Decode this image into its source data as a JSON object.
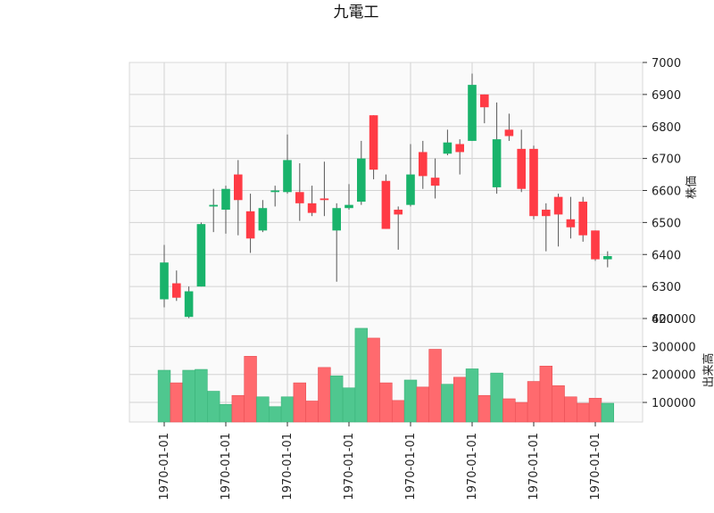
{
  "chart_data": {
    "type": "candlestick",
    "title": "九電工",
    "price_axis": {
      "label": "株価",
      "ylim": [
        6200,
        7000
      ],
      "ticks": [
        6200,
        6300,
        6400,
        6500,
        6600,
        6700,
        6800,
        6900,
        7000
      ]
    },
    "volume_axis": {
      "label": "出来高",
      "ylim": [
        30000,
        400000
      ],
      "ticks": [
        100000,
        200000,
        300000,
        400000
      ]
    },
    "x_tick_labels": [
      "1970-01-01",
      "1970-01-01",
      "1970-01-01",
      "1970-01-01",
      "1970-01-01",
      "1970-01-01",
      "1970-01-01",
      "1970-01-01"
    ],
    "x_tick_index": [
      0,
      5,
      10,
      15,
      20,
      25,
      30,
      35
    ],
    "grid": true,
    "colors": {
      "up": "#19b36b",
      "down": "#ff3b45",
      "up_volume": "#4fc78f",
      "down_volume": "#ff6a6e",
      "wick": "#555555",
      "grid": "#d3d3d3",
      "plot_bg": "#fafafa"
    },
    "candles": [
      {
        "open": 6260,
        "high": 6430,
        "low": 6235,
        "close": 6375,
        "volume": 215000
      },
      {
        "open": 6310,
        "high": 6350,
        "low": 6255,
        "close": 6265,
        "volume": 170000
      },
      {
        "open": 6205,
        "high": 6300,
        "low": 6195,
        "close": 6285,
        "volume": 215000
      },
      {
        "open": 6300,
        "high": 6500,
        "low": 6300,
        "close": 6495,
        "volume": 218000
      },
      {
        "open": 6550,
        "high": 6605,
        "low": 6470,
        "close": 6555,
        "volume": 140000
      },
      {
        "open": 6540,
        "high": 6615,
        "low": 6465,
        "close": 6605,
        "volume": 93000
      },
      {
        "open": 6650,
        "high": 6695,
        "low": 6460,
        "close": 6570,
        "volume": 125000
      },
      {
        "open": 6535,
        "high": 6590,
        "low": 6405,
        "close": 6450,
        "volume": 265000
      },
      {
        "open": 6475,
        "high": 6570,
        "low": 6470,
        "close": 6545,
        "volume": 120000
      },
      {
        "open": 6595,
        "high": 6615,
        "low": 6550,
        "close": 6600,
        "volume": 85000
      },
      {
        "open": 6595,
        "high": 6775,
        "low": 6590,
        "close": 6695,
        "volume": 120000
      },
      {
        "open": 6595,
        "high": 6685,
        "low": 6505,
        "close": 6560,
        "volume": 170000
      },
      {
        "open": 6560,
        "high": 6615,
        "low": 6520,
        "close": 6530,
        "volume": 105000
      },
      {
        "open": 6575,
        "high": 6690,
        "low": 6520,
        "close": 6570,
        "volume": 225000
      },
      {
        "open": 6475,
        "high": 6560,
        "low": 6315,
        "close": 6545,
        "volume": 195000
      },
      {
        "open": 6545,
        "high": 6620,
        "low": 6540,
        "close": 6555,
        "volume": 152000
      },
      {
        "open": 6565,
        "high": 6755,
        "low": 6555,
        "close": 6700,
        "volume": 365000
      },
      {
        "open": 6835,
        "high": 6835,
        "low": 6635,
        "close": 6665,
        "volume": 330000
      },
      {
        "open": 6630,
        "high": 6650,
        "low": 6480,
        "close": 6480,
        "volume": 170000
      },
      {
        "open": 6540,
        "high": 6550,
        "low": 6415,
        "close": 6525,
        "volume": 107000
      },
      {
        "open": 6555,
        "high": 6745,
        "low": 6550,
        "close": 6650,
        "volume": 180000
      },
      {
        "open": 6720,
        "high": 6755,
        "low": 6605,
        "close": 6645,
        "volume": 155000
      },
      {
        "open": 6640,
        "high": 6700,
        "low": 6575,
        "close": 6615,
        "volume": 290000
      },
      {
        "open": 6715,
        "high": 6790,
        "low": 6710,
        "close": 6750,
        "volume": 165000
      },
      {
        "open": 6745,
        "high": 6760,
        "low": 6650,
        "close": 6720,
        "volume": 190000
      },
      {
        "open": 6755,
        "high": 6965,
        "low": 6755,
        "close": 6930,
        "volume": 220000
      },
      {
        "open": 6900,
        "high": 6900,
        "low": 6810,
        "close": 6860,
        "volume": 125000
      },
      {
        "open": 6610,
        "high": 6875,
        "low": 6590,
        "close": 6760,
        "volume": 205000
      },
      {
        "open": 6790,
        "high": 6840,
        "low": 6755,
        "close": 6770,
        "volume": 113000
      },
      {
        "open": 6730,
        "high": 6790,
        "low": 6595,
        "close": 6605,
        "volume": 100000
      },
      {
        "open": 6730,
        "high": 6740,
        "low": 6510,
        "close": 6520,
        "volume": 175000
      },
      {
        "open": 6540,
        "high": 6560,
        "low": 6410,
        "close": 6520,
        "volume": 230000
      },
      {
        "open": 6580,
        "high": 6590,
        "low": 6425,
        "close": 6525,
        "volume": 160000
      },
      {
        "open": 6510,
        "high": 6580,
        "low": 6450,
        "close": 6485,
        "volume": 120000
      },
      {
        "open": 6565,
        "high": 6580,
        "low": 6440,
        "close": 6460,
        "volume": 97000
      },
      {
        "open": 6475,
        "high": 6475,
        "low": 6380,
        "close": 6385,
        "volume": 115000
      },
      {
        "open": 6385,
        "high": 6410,
        "low": 6360,
        "close": 6395,
        "volume": 97000
      }
    ]
  }
}
